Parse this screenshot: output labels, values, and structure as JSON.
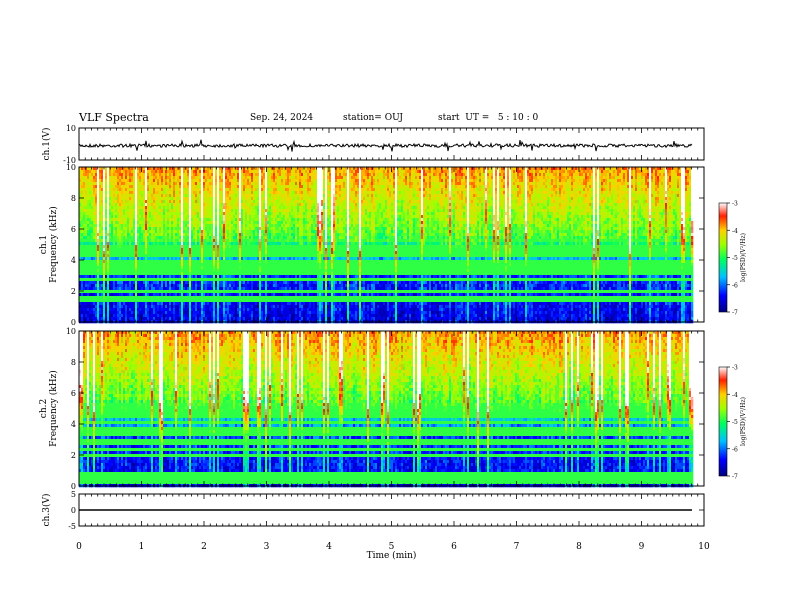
{
  "header": {
    "title": "VLF Spectra",
    "date": "Sep. 24, 2024",
    "station": "station= OUJ",
    "start": "start  UT =   5 : 10 : 0"
  },
  "chart_data": [
    {
      "type": "line",
      "panel": "ch1-waveform",
      "ylabel": "ch.1(V)",
      "ylim": [
        -10,
        10
      ],
      "yticks": [
        10,
        -10
      ],
      "xlim": [
        0,
        10
      ],
      "baseline_v": -1
    },
    {
      "type": "heatmap",
      "panel": "ch1-spectrogram",
      "ylabel_top": "ch.1",
      "ylabel": "Frequency (kHz)",
      "ylim": [
        0,
        10
      ],
      "yticks": [
        0,
        2,
        4,
        6,
        8,
        10
      ],
      "xlim": [
        0,
        10
      ],
      "data_end_min": 9.85,
      "colorbar": {
        "label": "log(PSD)(V²/Hz)",
        "range": [
          -7,
          -3
        ],
        "ticks": [
          -3,
          -4,
          -5,
          -6,
          -7
        ]
      }
    },
    {
      "type": "heatmap",
      "panel": "ch2-spectrogram",
      "ylabel_top": "ch.2",
      "ylabel": "Frequency (kHz)",
      "ylim": [
        0,
        10
      ],
      "yticks": [
        0,
        2,
        4,
        6,
        8,
        10
      ],
      "xlim": [
        0,
        10
      ],
      "data_end_min": 9.85,
      "colorbar": {
        "label": "log(PSD)(V²/Hz)",
        "range": [
          -7,
          -3
        ],
        "ticks": [
          -3,
          -4,
          -5,
          -6,
          -7
        ]
      }
    },
    {
      "type": "line",
      "panel": "ch3-waveform",
      "ylabel": "ch.3(V)",
      "ylim": [
        -5,
        5
      ],
      "yticks": [
        5,
        0,
        -5
      ],
      "xlim": [
        0,
        10
      ],
      "value_v": 0
    }
  ],
  "xaxis": {
    "label": "Time  (min)",
    "ticks": [
      0,
      1,
      2,
      3,
      4,
      5,
      6,
      7,
      8,
      9,
      10
    ]
  }
}
